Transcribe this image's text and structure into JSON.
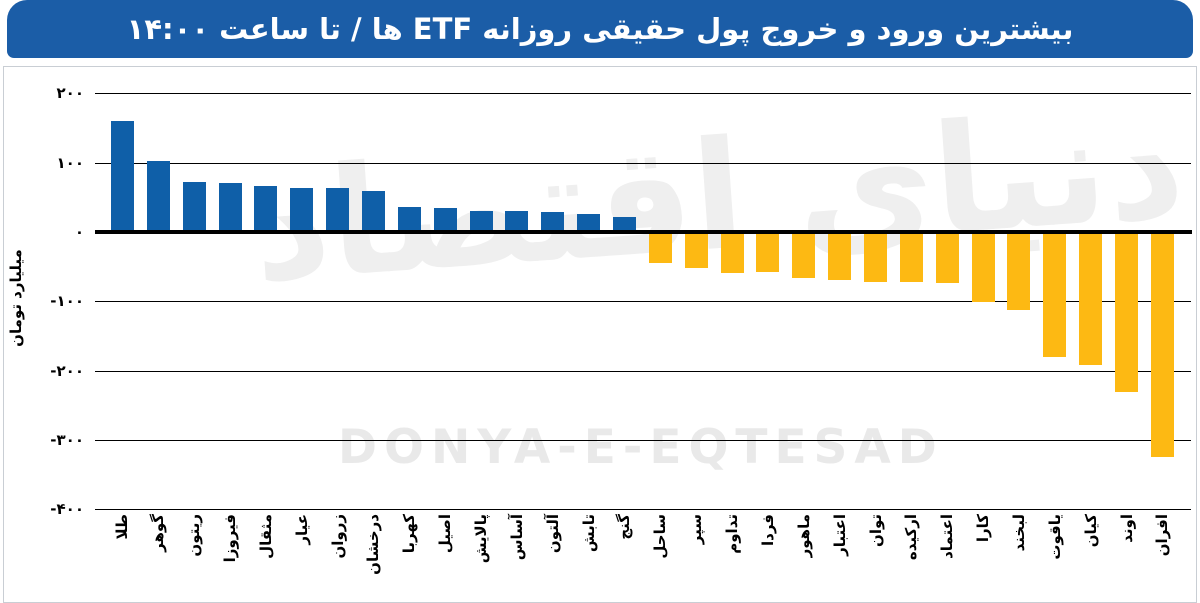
{
  "header": {
    "title": "بیشترین ورود و خروج پول حقیقی روزانه ETF ها / تا ساعت ۱۴:۰۰",
    "bg_color": "#1b5da7",
    "text_color": "#ffffff"
  },
  "watermark": {
    "persian": "دنیای اقتصاد",
    "latin": "DONYA-E-EQTESAD"
  },
  "y_axis": {
    "title": "میلیارد تومان",
    "ticks": [
      {
        "label": "۲۰۰",
        "value": 200
      },
      {
        "label": "۱۰۰",
        "value": 100
      },
      {
        "label": "۰",
        "value": 0
      },
      {
        "label": "-۱۰۰",
        "value": -100
      },
      {
        "label": "-۲۰۰",
        "value": -200
      },
      {
        "label": "-۳۰۰",
        "value": -300
      },
      {
        "label": "-۴۰۰",
        "value": -400
      }
    ]
  },
  "chart_data": {
    "type": "bar",
    "title": "بیشترین ورود و خروج پول حقیقی روزانه ETF ها / تا ساعت ۱۴:۰۰",
    "xlabel": "",
    "ylabel": "میلیارد تومان",
    "ylim": [
      -400,
      200
    ],
    "grid": true,
    "legend": "none",
    "categories": [
      "طلا",
      "گوهر",
      "ریتون",
      "فیروزا",
      "مثقال",
      "عیار",
      "زروان",
      "درخشان",
      "کهربا",
      "اصیل",
      "پالایش",
      "آساس",
      "آلتون",
      "تابش",
      "گنج",
      "ساحل",
      "سپر",
      "تداوم",
      "فردا",
      "ماهور",
      "اعتبار",
      "توان",
      "ارکیده",
      "اعتماد",
      "کارا",
      "لبخند",
      "یاقوت",
      "کیان",
      "اوند",
      "افران"
    ],
    "values": [
      160,
      103,
      72,
      71,
      66,
      64,
      64,
      59,
      36,
      35,
      30,
      30,
      29,
      26,
      22,
      -45,
      -52,
      -59,
      -58,
      -66,
      -69,
      -72,
      -72,
      -74,
      -101,
      -113,
      -180,
      -192,
      -230,
      -325
    ],
    "positive_color": "#0f5fa8",
    "negative_color": "#fdb913"
  }
}
